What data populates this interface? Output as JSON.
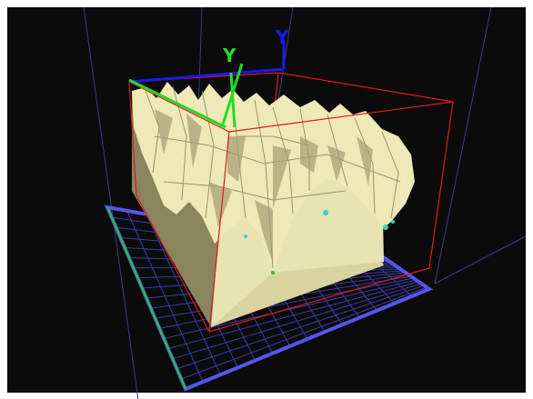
{
  "viewer": {
    "background_color": "#0b0b0b",
    "frame_color": "#ffffff"
  },
  "axes": {
    "green_axis_label": "Y",
    "blue_axis_label": "Y",
    "green_axis_color": "#22dd22",
    "blue_axis_color": "#1a1aee"
  },
  "bounding_box": {
    "color": "#dd1a1a"
  },
  "floor_grid": {
    "border_color": "#5555ee",
    "line_color": "#3a3aa8",
    "edge_accent_color": "#22cc22"
  },
  "terrain": {
    "fill_color": "#eeeab8",
    "shadow_color": "#908a62",
    "ridge_color": "#8f8a66"
  },
  "markers": {
    "color": "#33d3d3"
  },
  "perspective_lines": {
    "color": "#3c3c8c"
  }
}
